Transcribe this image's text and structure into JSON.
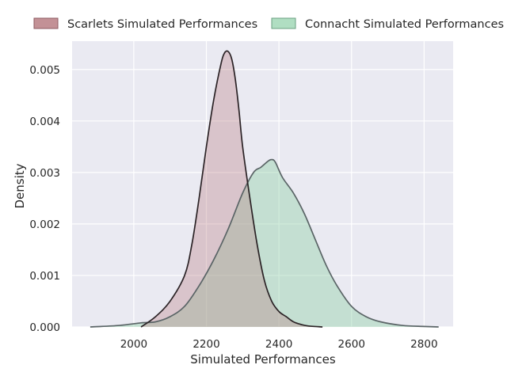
{
  "chart_data": {
    "type": "area",
    "title": "",
    "xlabel": "Simulated Performances",
    "ylabel": "Density",
    "xlim": [
      1830,
      2880
    ],
    "ylim": [
      0,
      0.00555
    ],
    "xticks": [
      2000,
      2200,
      2400,
      2600,
      2800
    ],
    "yticks": [
      0.0,
      0.001,
      0.002,
      0.003,
      0.004,
      0.005
    ],
    "xtick_labels": [
      "2000",
      "2200",
      "2400",
      "2600",
      "2800"
    ],
    "ytick_labels": [
      "0.000",
      "0.001",
      "0.002",
      "0.003",
      "0.004",
      "0.005"
    ],
    "grid": true,
    "legend_position": "top",
    "series": [
      {
        "name": "Scarlets Simulated Performances",
        "fill_color": "#b97e84",
        "line_color": "#2b2326",
        "x": [
          2020,
          2060,
          2100,
          2140,
          2160,
          2180,
          2200,
          2220,
          2240,
          2250,
          2260,
          2270,
          2280,
          2290,
          2300,
          2320,
          2340,
          2360,
          2380,
          2400,
          2420,
          2440,
          2460,
          2480,
          2520
        ],
        "y": [
          0.0,
          0.0002,
          0.0005,
          0.001,
          0.0016,
          0.0025,
          0.0035,
          0.0044,
          0.0051,
          0.00532,
          0.00535,
          0.0052,
          0.0048,
          0.0042,
          0.0035,
          0.0025,
          0.0016,
          0.0009,
          0.0005,
          0.0003,
          0.0002,
          0.0001,
          5e-05,
          2e-05,
          0.0
        ]
      },
      {
        "name": "Connacht Simulated Performances",
        "fill_color": "#8fd0a8",
        "line_color": "#5a6466",
        "x": [
          1880,
          1960,
          2020,
          2060,
          2100,
          2140,
          2180,
          2220,
          2260,
          2300,
          2330,
          2350,
          2370,
          2380,
          2390,
          2410,
          2440,
          2470,
          2500,
          2530,
          2560,
          2600,
          2640,
          2680,
          2740,
          2800,
          2840
        ],
        "y": [
          0.0,
          3e-05,
          8e-05,
          0.0001,
          0.0002,
          0.0004,
          0.0008,
          0.0013,
          0.0019,
          0.0026,
          0.003,
          0.0031,
          0.00322,
          0.00325,
          0.0032,
          0.0029,
          0.0026,
          0.0022,
          0.0017,
          0.0012,
          0.0008,
          0.0004,
          0.0002,
          0.0001,
          3e-05,
          1e-05,
          0.0
        ]
      }
    ]
  }
}
